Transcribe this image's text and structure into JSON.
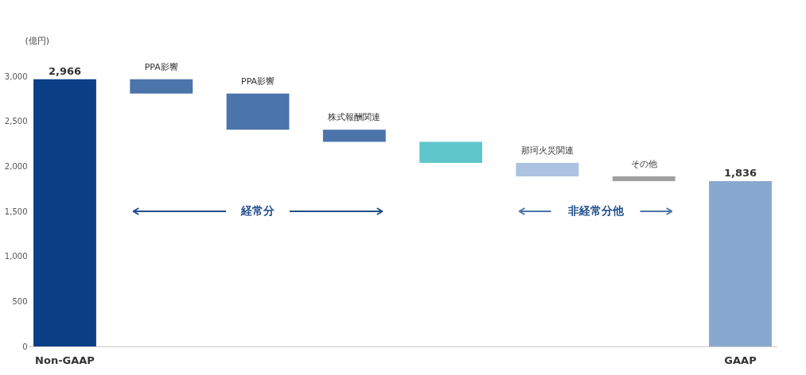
{
  "chart_data": {
    "type": "bar",
    "ylabel": "(億円)",
    "categories": [
      "Non-GAAP",
      "PPA影響",
      "PPA影響",
      "株式報酬関連",
      null,
      "那珂火災関連",
      "その他",
      "GAAP"
    ],
    "base": [
      0,
      2807,
      2406,
      2272,
      2038,
      1888,
      1836,
      0
    ],
    "values": [
      2966,
      159,
      401,
      134,
      234,
      150,
      52,
      1836
    ],
    "colors": [
      "#0a3f86",
      "#4a74aa",
      "#4a74aa",
      "#4a74aa",
      "#5fc6cc",
      "#abc3e0",
      "#a0a0a0",
      "#88a8d0"
    ],
    "value_labels": [
      "2,966",
      null,
      null,
      null,
      null,
      null,
      null,
      "1,836"
    ],
    "ylim": [
      0,
      3000
    ],
    "yticks": [
      0,
      500,
      {
        "value": 1000,
        "label": "1,000"
      },
      {
        "value": 1500,
        "label": "1,500"
      },
      {
        "value": 2000,
        "label": "2,000"
      },
      {
        "value": 2500,
        "label": "2,500"
      },
      {
        "value": 3000,
        "label": "3,000"
      }
    ],
    "annotations": [
      "経常分",
      "非経常分他"
    ],
    "grid": false
  }
}
